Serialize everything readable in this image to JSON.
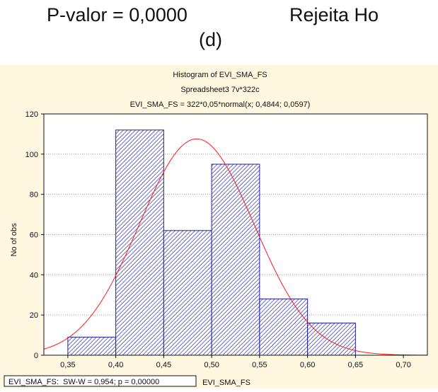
{
  "header": {
    "pvalue_text": "P-valor = 0,0000",
    "decision_text": "Rejeita Ho",
    "panel_label": "(d)"
  },
  "colors": {
    "background": "#fff7e0",
    "bar_stroke": "#1f1fa8",
    "bar_hatch": "#1f1fa8",
    "curve": "#ff1a1a",
    "grid": "#9a9a9a"
  },
  "chart_data": {
    "type": "bar",
    "title": "Histogram of EVI_SMA_FS",
    "subtitle": "Spreadsheet3 7v*322c",
    "subtitle2": "EVI_SMA_FS = 322*0,05*normal(x; 0,4844; 0,0597)",
    "xlabel": "EVI_SMA_FS",
    "ylabel": "No of obs",
    "bins": [
      {
        "from": 0.35,
        "to": 0.4,
        "count": 9
      },
      {
        "from": 0.4,
        "to": 0.45,
        "count": 112
      },
      {
        "from": 0.45,
        "to": 0.5,
        "count": 62
      },
      {
        "from": 0.5,
        "to": 0.55,
        "count": 95
      },
      {
        "from": 0.55,
        "to": 0.6,
        "count": 28
      },
      {
        "from": 0.6,
        "to": 0.65,
        "count": 16
      }
    ],
    "normal_fit": {
      "n": 322,
      "bin_width": 0.05,
      "mean": 0.4844,
      "sd": 0.0597
    },
    "xlim": [
      0.325,
      0.725
    ],
    "ylim": [
      0,
      120
    ],
    "xticks": [
      0.35,
      0.4,
      0.45,
      0.5,
      0.55,
      0.6,
      0.65,
      0.7
    ],
    "xtick_labels": [
      "0,35",
      "0,40",
      "0,45",
      "0,50",
      "0,55",
      "0,60",
      "0,65",
      "0,70"
    ],
    "yticks": [
      0,
      20,
      40,
      60,
      80,
      100,
      120
    ],
    "ytick_labels": [
      "0",
      "20",
      "40",
      "60",
      "80",
      "100",
      "120"
    ],
    "grid": true,
    "test_annotation": "EVI_SMA_FS:  SW-W = 0,954; p = 0,00000"
  }
}
